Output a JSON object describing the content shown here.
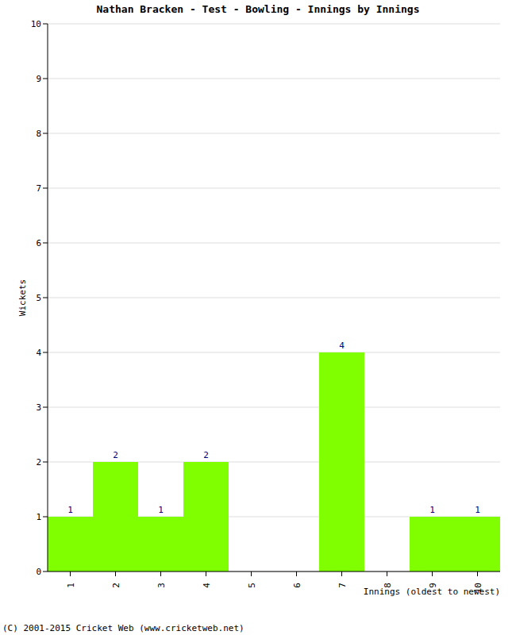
{
  "chart_data": {
    "type": "bar",
    "title": "Nathan Bracken - Test - Bowling - Innings by Innings",
    "x_label": "Innings (oldest to newest)",
    "y_label": "Wickets",
    "annotations": [
      "(C) 2001-2015 Cricket Web (www.cricketweb.net)"
    ],
    "categories": [
      "1",
      "2",
      "3",
      "4",
      "5",
      "6",
      "7",
      "8",
      "9",
      "10"
    ],
    "values": [
      1,
      2,
      1,
      2,
      0,
      0,
      4,
      0,
      1,
      1
    ],
    "color": "#7fff00",
    "ylim": [
      0,
      10
    ],
    "yticks": [
      0,
      1,
      2,
      3,
      4,
      5,
      6,
      7,
      8,
      9,
      10
    ],
    "grid": true,
    "data_labels": true
  }
}
